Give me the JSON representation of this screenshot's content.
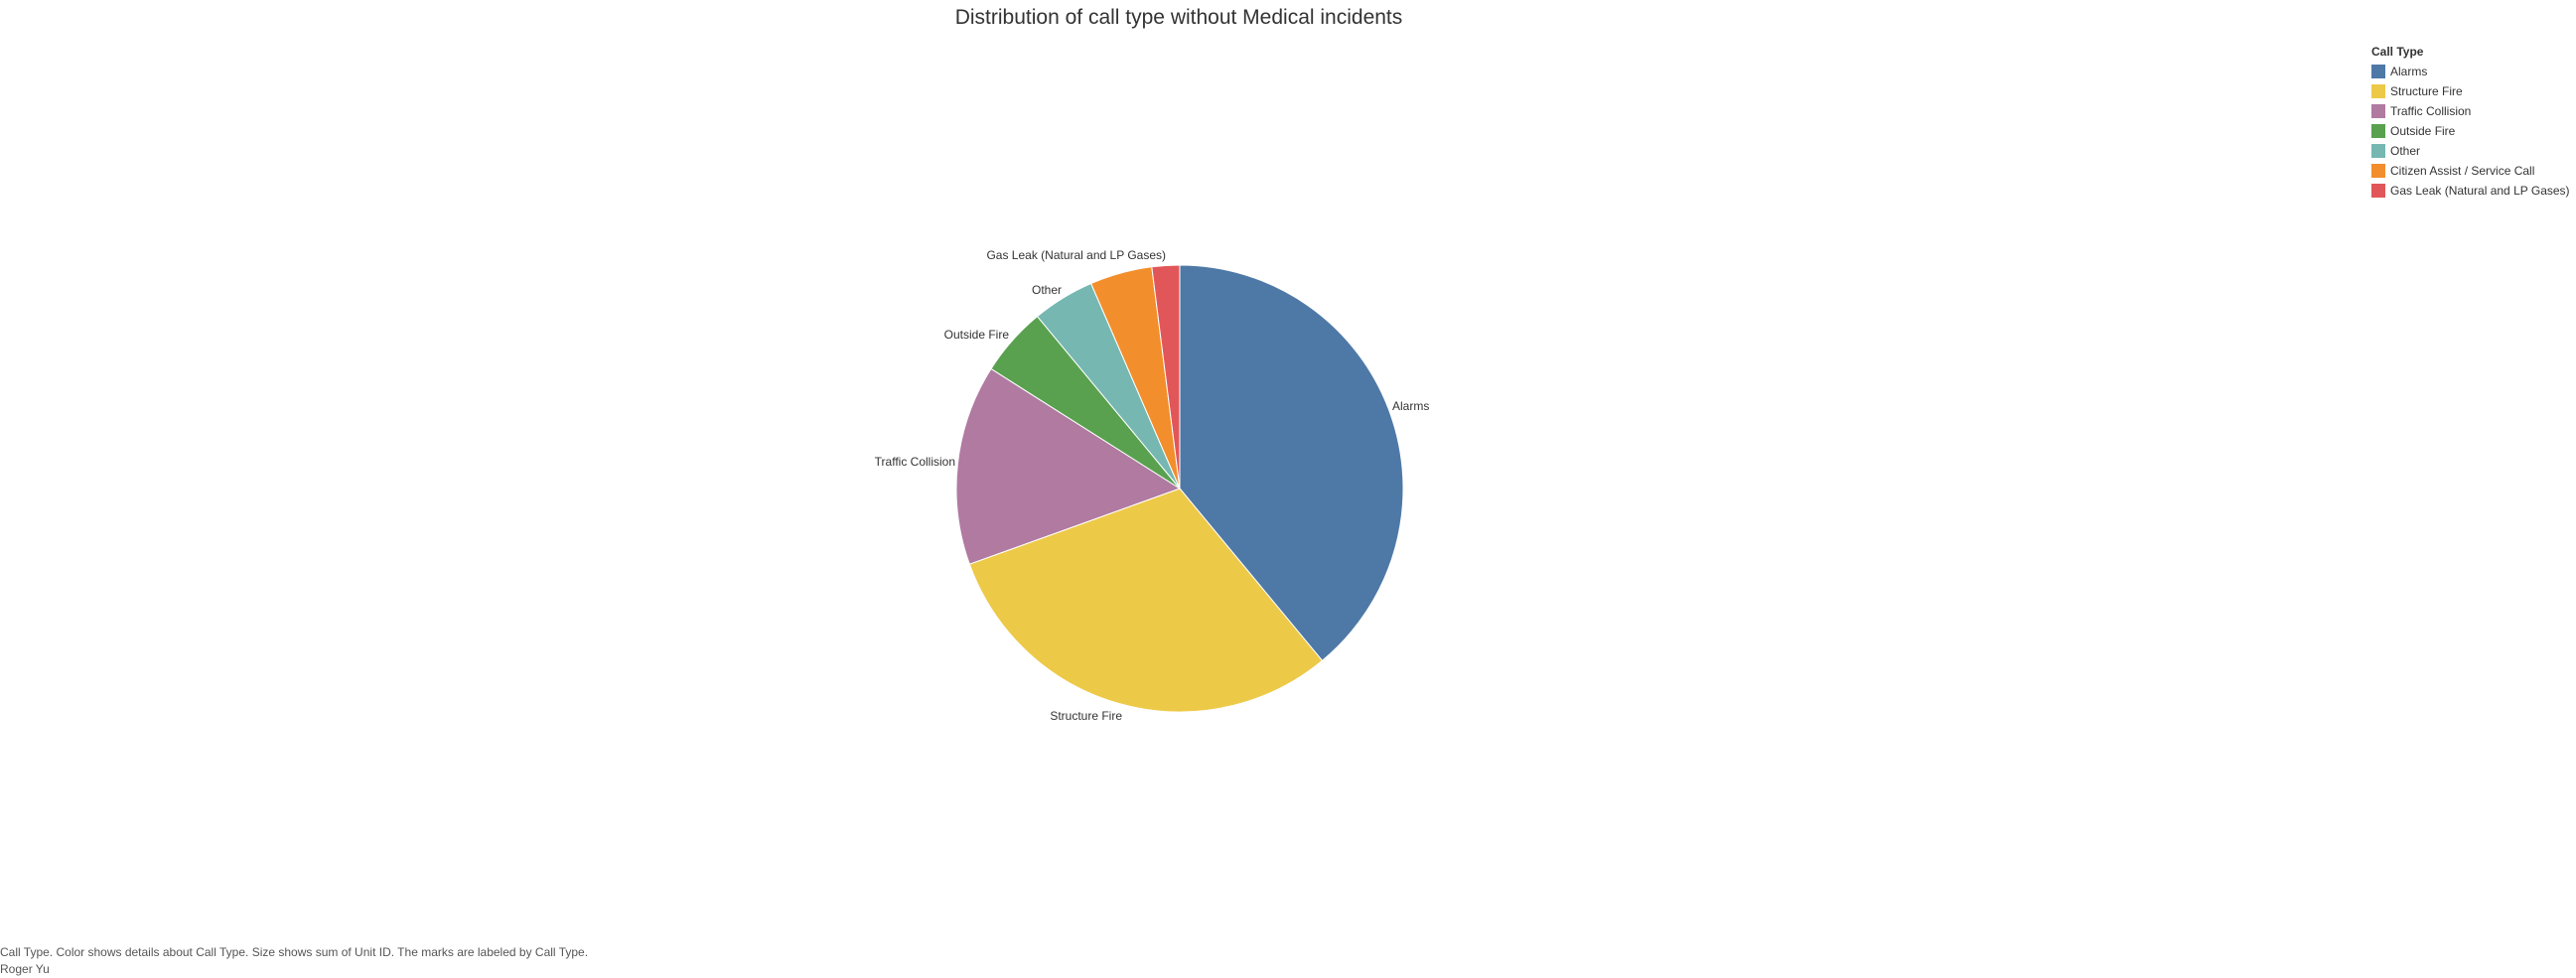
{
  "chart_data": {
    "type": "pie",
    "title": "Distribution of call type without Medical incidents",
    "slices": [
      {
        "label": "Alarms",
        "value": 39.0,
        "color": "#4e79a7"
      },
      {
        "label": "Structure Fire",
        "value": 30.5,
        "color": "#edc948"
      },
      {
        "label": "Traffic Collision",
        "value": 14.5,
        "color": "#b07aa1"
      },
      {
        "label": "Outside Fire",
        "value": 5.0,
        "color": "#59a14f"
      },
      {
        "label": "Other",
        "value": 4.5,
        "color": "#76b7b2"
      },
      {
        "label": "Citizen Assist / Service Call",
        "value": 4.5,
        "color": "#f28e2b"
      },
      {
        "label": "Gas Leak (Natural and LP Gases)",
        "value": 2.0,
        "color": "#e15759"
      }
    ],
    "start_angle_deg": 0,
    "direction": "clockwise",
    "slice_labels": [
      "Alarms",
      "Structure Fire",
      "Traffic Collision",
      "Outside Fire",
      "Other",
      "",
      "Gas Leak (Natural and LP Gases)"
    ],
    "legend": {
      "title": "Call Type",
      "position": "top-right"
    }
  },
  "caption": {
    "line1": "Call Type.  Color shows details about Call Type.  Size shows sum of Unit ID.  The marks are labeled by Call Type.",
    "line2": "Roger Yu"
  }
}
